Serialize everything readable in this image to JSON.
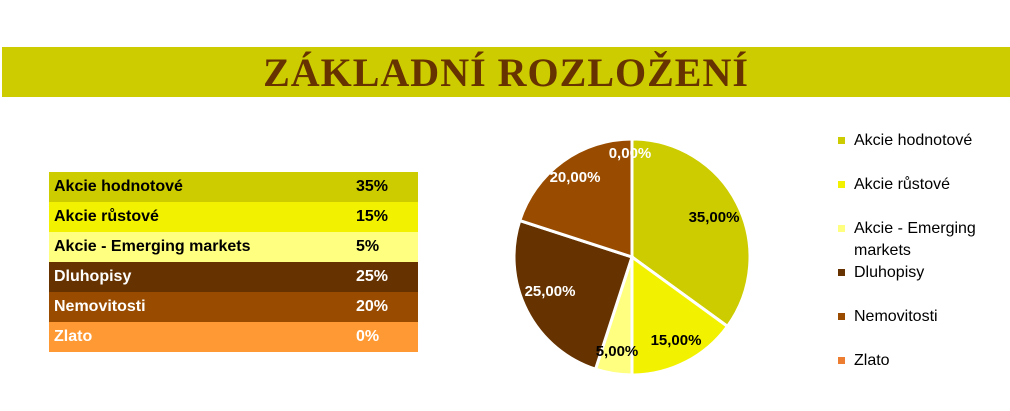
{
  "title": "ZÁKLADNÍ ROZLOŽENÍ",
  "table": [
    {
      "label": "Akcie hodnotové",
      "value": "35%",
      "bg": "#cccc00",
      "fg": "#000000"
    },
    {
      "label": "Akcie růstové",
      "value": "15%",
      "bg": "#f2f200",
      "fg": "#000000"
    },
    {
      "label": "Akcie - Emerging markets",
      "value": "5%",
      "bg": "#ffff80",
      "fg": "#000000"
    },
    {
      "label": "Dluhopisy",
      "value": "25%",
      "bg": "#663300",
      "fg": "#ffffff"
    },
    {
      "label": "Nemovitosti",
      "value": "20%",
      "bg": "#994c00",
      "fg": "#ffffff"
    },
    {
      "label": "Zlato",
      "value": "0%",
      "bg": "#ff9933",
      "fg": "#ffffff"
    }
  ],
  "chart_data": {
    "type": "pie",
    "categories": [
      "Akcie hodnotové",
      "Akcie růstové",
      "Akcie - Emerging markets",
      "Dluhopisy",
      "Nemovitosti",
      "Zlato"
    ],
    "values": [
      35,
      15,
      5,
      25,
      20,
      0
    ],
    "data_labels": [
      "35,00%",
      "15,00%",
      "5,00%",
      "25,00%",
      "20,00%",
      "0,00%"
    ],
    "colors": [
      "#cccc00",
      "#f2f200",
      "#ffff80",
      "#663300",
      "#994c00",
      "#ed7d31"
    ],
    "label_colors": [
      "#000000",
      "#000000",
      "#000000",
      "#ffffff",
      "#ffffff",
      "#ffffff"
    ],
    "legend": "right"
  }
}
